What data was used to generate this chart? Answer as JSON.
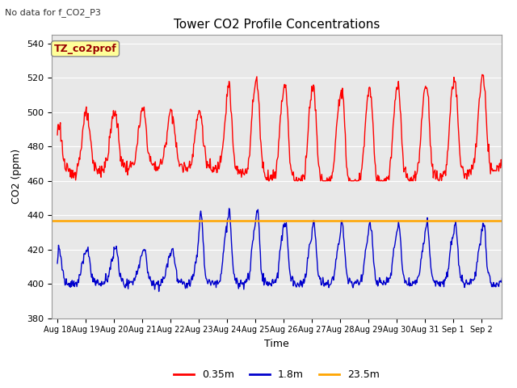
{
  "title": "Tower CO2 Profile Concentrations",
  "subtitle": "No data for f_CO2_P3",
  "xlabel": "Time",
  "ylabel": "CO2 (ppm)",
  "ylim": [
    380,
    545
  ],
  "yticks": [
    380,
    400,
    420,
    440,
    460,
    480,
    500,
    520,
    540
  ],
  "fig_bg_color": "#ffffff",
  "plot_bg_color": "#e8e8e8",
  "legend_label": "TZ_co2prof",
  "legend_bg": "#ffff99",
  "legend_text_color": "#990000",
  "line_orange_value": 437,
  "grid_color": "#ffffff",
  "series": {
    "red": {
      "label": "0.35m",
      "color": "#ff0000",
      "lw": 1.0
    },
    "blue": {
      "label": "1.8m",
      "color": "#0000cc",
      "lw": 1.0
    },
    "orange": {
      "label": "23.5m",
      "color": "#ffa500",
      "lw": 1.8
    }
  },
  "x_tick_labels": [
    "Aug 18",
    "Aug 19",
    "Aug 20",
    "Aug 21",
    "Aug 22",
    "Aug 23",
    "Aug 24",
    "Aug 25",
    "Aug 26",
    "Aug 27",
    "Aug 28",
    "Aug 29",
    "Aug 30",
    "Aug 31",
    "Sep 1",
    "Sep 2"
  ],
  "num_days": 16
}
